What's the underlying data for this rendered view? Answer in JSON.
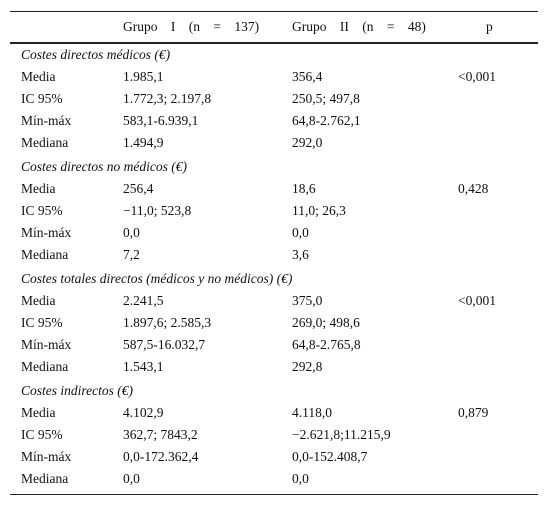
{
  "table": {
    "header": {
      "group1": "Grupo I (n = 137)",
      "group2": "Grupo II (n = 48)",
      "p": "p"
    },
    "sections": [
      {
        "title": "Costes directos médicos (€)",
        "rows": [
          [
            "Media",
            "1.985,1",
            "356,4",
            "<0,001"
          ],
          [
            "IC 95%",
            "1.772,3; 2.197,8",
            "250,5; 497,8"
          ],
          [
            "Mín-máx",
            "583,1-6.939,1",
            "64,8-2.762,1"
          ],
          [
            "Mediana",
            "1.494,9",
            "292,0"
          ]
        ]
      },
      {
        "title": "Costes directos no médicos (€)",
        "rows": [
          [
            "Media",
            "256,4",
            "18,6",
            "0,428"
          ],
          [
            "IC 95%",
            "−11,0; 523,8",
            "11,0; 26,3"
          ],
          [
            "Mín-máx",
            "0,0",
            "0,0"
          ],
          [
            "Mediana",
            "7,2",
            "3,6"
          ]
        ]
      },
      {
        "title": "Costes totales directos (médicos y no médicos) (€)",
        "rows": [
          [
            "Media",
            "2.241,5",
            "375,0",
            "<0,001"
          ],
          [
            "IC 95%",
            "1.897,6; 2.585,3",
            "269,0; 498,6"
          ],
          [
            "Mín-máx",
            "587,5-16.032,7",
            "64,8-2.765,8"
          ],
          [
            "Mediana",
            "1.543,1",
            "292,8"
          ]
        ]
      },
      {
        "title": "Costes indirectos (€)",
        "rows": [
          [
            "Media",
            "4.102,9",
            "4.118,0",
            "0,879"
          ],
          [
            "IC 95%",
            "362,7; 7843,2",
            "−2.621,8;11.215,9"
          ],
          [
            "Mín-máx",
            "0,0-172.362,4",
            "0,0-152.408,7"
          ],
          [
            "Mediana",
            "0,0",
            "0,0"
          ]
        ]
      }
    ]
  }
}
